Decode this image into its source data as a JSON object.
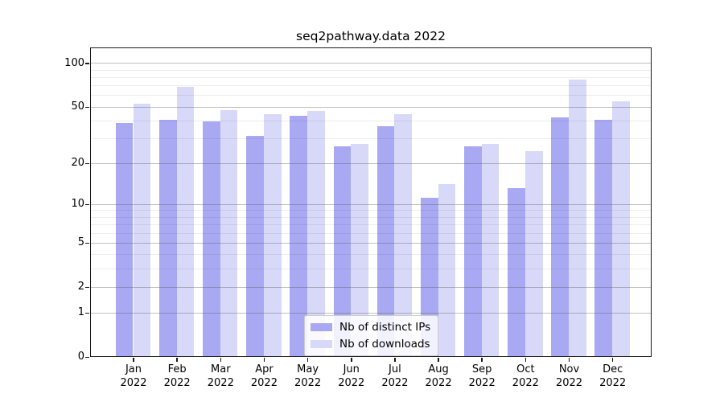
{
  "page": {
    "background": "#ffffff"
  },
  "chart_data": {
    "type": "bar",
    "title": "seq2pathway.data 2022",
    "year_label": "2022",
    "categories": [
      "Jan",
      "Feb",
      "Mar",
      "Apr",
      "May",
      "Jun",
      "Jul",
      "Aug",
      "Sep",
      "Oct",
      "Nov",
      "Dec"
    ],
    "series": [
      {
        "name": "Nb of distinct IPs",
        "color": "#a9a9f3",
        "values": [
          38,
          40,
          39,
          31,
          43,
          26,
          36,
          11,
          26,
          13,
          42,
          40
        ]
      },
      {
        "name": "Nb of downloads",
        "color": "#d8d8f9",
        "values": [
          52,
          68,
          47,
          44,
          46,
          27,
          44,
          14,
          27,
          24,
          76,
          54
        ]
      }
    ],
    "xlabel": "",
    "ylabel": "",
    "y_scale": "log1p",
    "y_major_ticks": [
      0,
      1,
      2,
      5,
      10,
      20,
      50,
      100
    ],
    "y_minor_gridlines": [
      3,
      4,
      6,
      7,
      8,
      9,
      30,
      40,
      60,
      70,
      80,
      90
    ],
    "ylim": [
      0,
      129
    ],
    "grid": "on",
    "legend_position": "bottom-center",
    "spine_color": "#1a1a1a",
    "major_grid_color": "#b5b5b5",
    "minor_grid_color": "#ececec"
  }
}
